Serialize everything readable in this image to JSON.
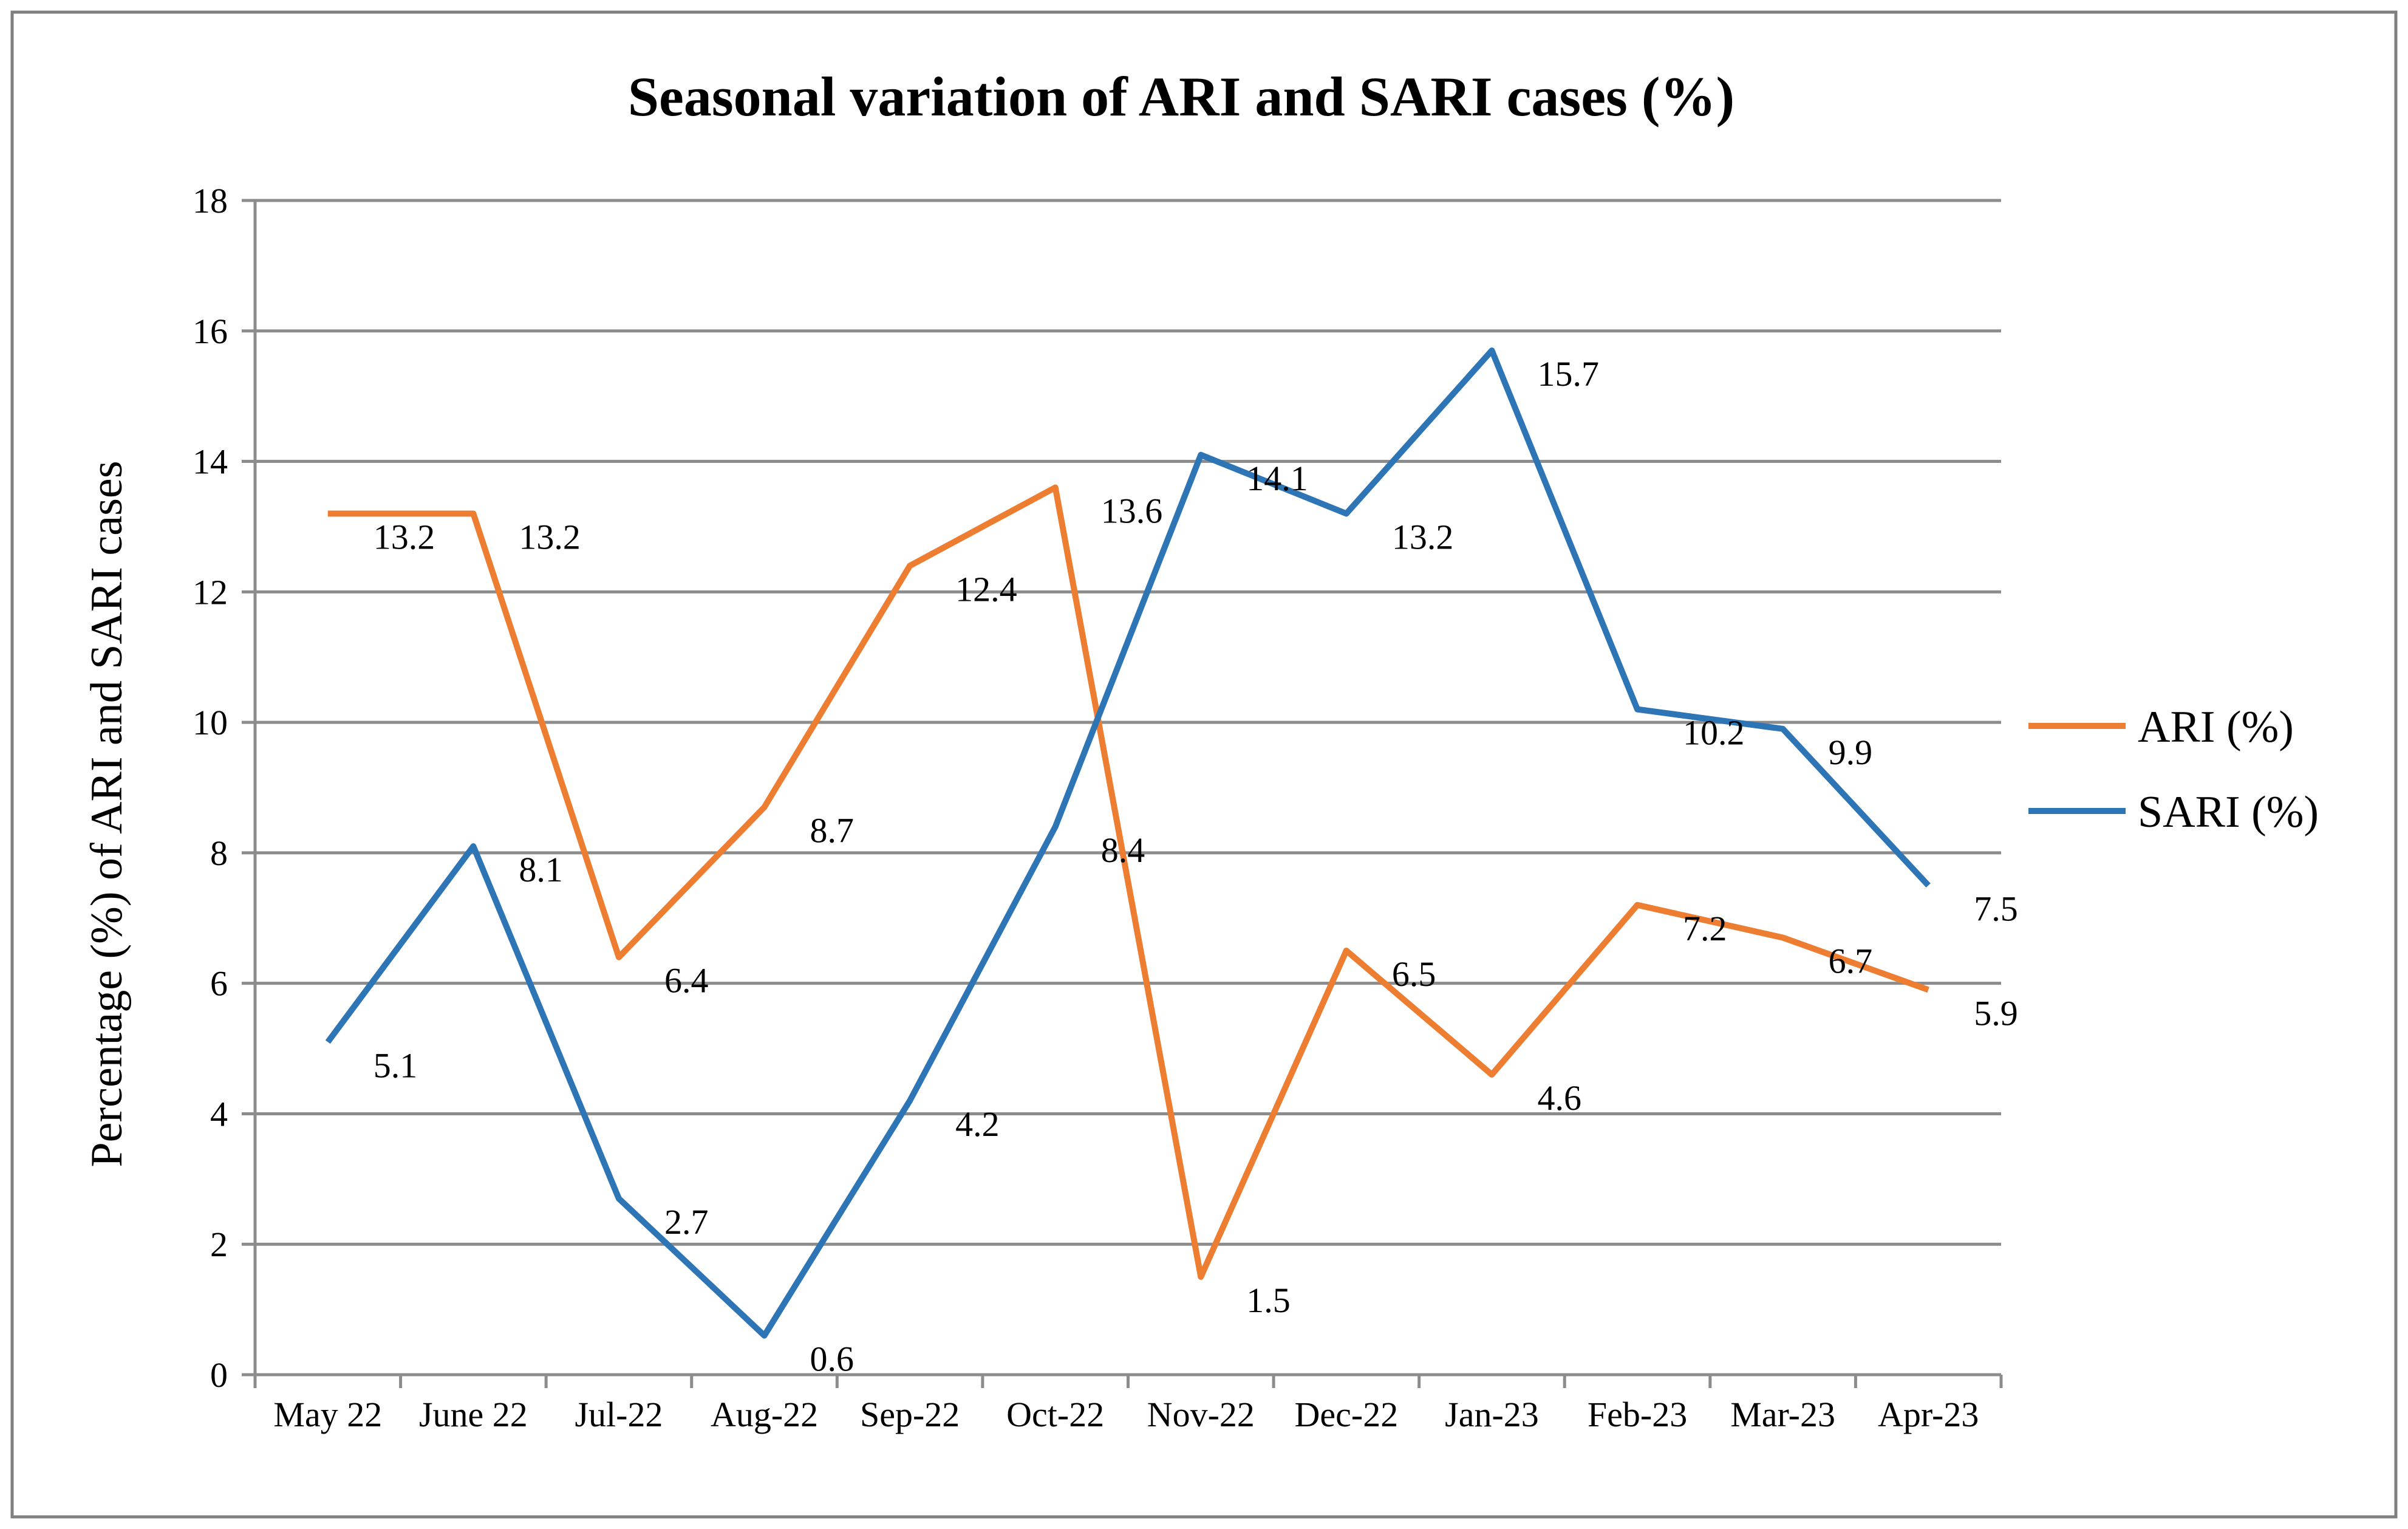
{
  "chart_data": {
    "type": "line",
    "title": "Seasonal variation of ARI and SARI cases (%)",
    "xlabel": "",
    "ylabel": "Percentage (%) of ARI and SARI cases",
    "ylim": [
      0,
      18
    ],
    "yticks": [
      0,
      2,
      4,
      6,
      8,
      10,
      12,
      14,
      16,
      18
    ],
    "grid": true,
    "legend_position": "right",
    "categories": [
      "May 22",
      "June 22",
      "Jul-22",
      "Aug-22",
      "Sep-22",
      "Oct-22",
      "Nov-22",
      "Dec-22",
      "Jan-23",
      "Feb-23",
      "Mar-23",
      "Apr-23"
    ],
    "series": [
      {
        "name": "ARI (%)",
        "color": "#ED7D31",
        "values": [
          13.2,
          13.2,
          6.4,
          8.7,
          12.4,
          13.6,
          1.5,
          6.5,
          4.6,
          7.2,
          6.7,
          5.9
        ]
      },
      {
        "name": "SARI (%)",
        "color": "#2E75B6",
        "values": [
          5.1,
          8.1,
          2.7,
          0.6,
          4.2,
          8.4,
          14.1,
          13.2,
          15.7,
          10.2,
          9.9,
          7.5
        ]
      }
    ]
  }
}
